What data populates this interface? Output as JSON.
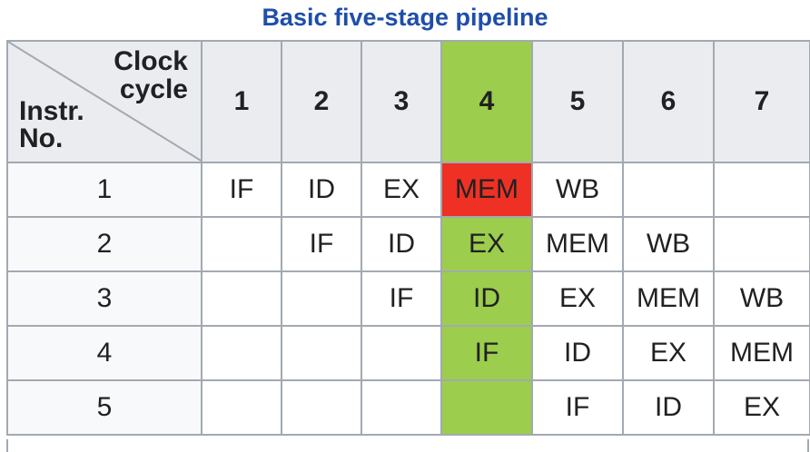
{
  "caption": "Basic five-stage pipeline",
  "corner": {
    "clock_line1": "Clock",
    "clock_line2": "cycle",
    "instr_line1": "Instr.",
    "instr_line2": "No."
  },
  "cycles": [
    "1",
    "2",
    "3",
    "4",
    "5",
    "6",
    "7"
  ],
  "highlight_cycle": "4",
  "colors": {
    "highlight": "#9ccd4c",
    "stall": "#ee3124",
    "caption": "#1f4eaa"
  },
  "rows": [
    {
      "instr": "1",
      "cells": [
        "IF",
        "ID",
        "EX",
        "MEM",
        "WB",
        "",
        ""
      ]
    },
    {
      "instr": "2",
      "cells": [
        "",
        "IF",
        "ID",
        "EX",
        "MEM",
        "WB",
        ""
      ]
    },
    {
      "instr": "3",
      "cells": [
        "",
        "",
        "IF",
        "ID",
        "EX",
        "MEM",
        "WB"
      ]
    },
    {
      "instr": "4",
      "cells": [
        "",
        "",
        "",
        "IF",
        "ID",
        "EX",
        "MEM"
      ]
    },
    {
      "instr": "5",
      "cells": [
        "",
        "",
        "",
        "",
        "IF",
        "ID",
        "EX"
      ]
    }
  ]
}
